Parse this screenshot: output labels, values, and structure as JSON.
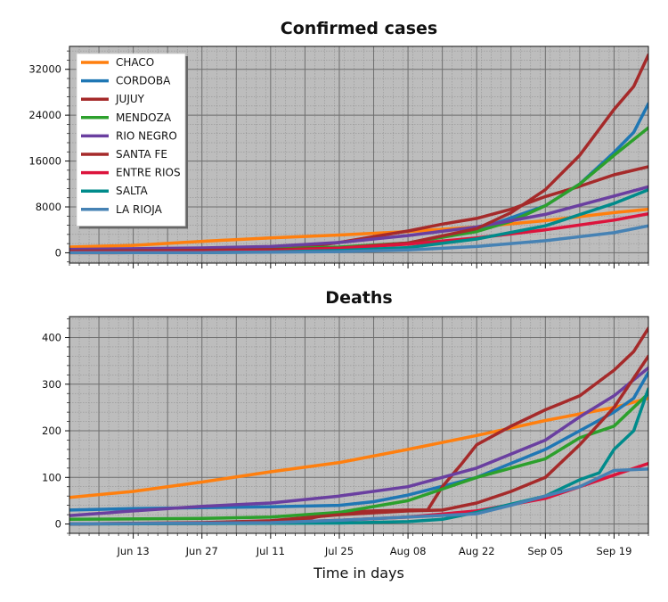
{
  "figure": {
    "xlabel": "Time in days",
    "x_tick_labels": [
      "Jun 13",
      "Jun 27",
      "Jul 11",
      "Jul 25",
      "Aug 08",
      "Aug 22",
      "Sep 05",
      "Sep 19"
    ],
    "background": "#bdbdbd"
  },
  "chart_data": [
    {
      "type": "line",
      "title": "Confirmed cases",
      "xlabel": "Time in days",
      "ylabel": "",
      "x_range": [
        "2020-05-31",
        "2020-09-26"
      ],
      "ylim": [
        -1800,
        36000
      ],
      "y_ticks": [
        0,
        8000,
        16000,
        24000,
        32000
      ],
      "grid": true,
      "legend": "top-left",
      "series": [
        {
          "name": "CHACO",
          "color": "#ff7f0e",
          "points": [
            [
              "2020-05-31",
              1000
            ],
            [
              "2020-06-13",
              1300
            ],
            [
              "2020-06-27",
              2000
            ],
            [
              "2020-07-11",
              2600
            ],
            [
              "2020-07-25",
              3100
            ],
            [
              "2020-08-08",
              3700
            ],
            [
              "2020-08-22",
              4500
            ],
            [
              "2020-09-05",
              5600
            ],
            [
              "2020-09-19",
              7000
            ],
            [
              "2020-09-26",
              7600
            ]
          ]
        },
        {
          "name": "CORDOBA",
          "color": "#1f77b4",
          "points": [
            [
              "2020-05-31",
              500
            ],
            [
              "2020-06-13",
              550
            ],
            [
              "2020-06-27",
              600
            ],
            [
              "2020-07-11",
              700
            ],
            [
              "2020-07-25",
              900
            ],
            [
              "2020-08-08",
              1700
            ],
            [
              "2020-08-22",
              4000
            ],
            [
              "2020-09-05",
              8200
            ],
            [
              "2020-09-12",
              12000
            ],
            [
              "2020-09-19",
              17500
            ],
            [
              "2020-09-23",
              21000
            ],
            [
              "2020-09-26",
              26000
            ]
          ]
        },
        {
          "name": "JUJUY",
          "color": "#a52a2a",
          "points": [
            [
              "2020-05-31",
              10
            ],
            [
              "2020-06-13",
              20
            ],
            [
              "2020-06-27",
              50
            ],
            [
              "2020-07-04",
              150
            ],
            [
              "2020-07-11",
              450
            ],
            [
              "2020-07-18",
              1000
            ],
            [
              "2020-07-25",
              1800
            ],
            [
              "2020-08-01",
              2800
            ],
            [
              "2020-08-08",
              3800
            ],
            [
              "2020-08-15",
              5000
            ],
            [
              "2020-08-22",
              6000
            ],
            [
              "2020-08-29",
              7600
            ],
            [
              "2020-09-05",
              9800
            ],
            [
              "2020-09-12",
              11600
            ],
            [
              "2020-09-19",
              13600
            ],
            [
              "2020-09-26",
              15000
            ]
          ]
        },
        {
          "name": "MENDOZA",
          "color": "#2ca02c",
          "points": [
            [
              "2020-05-31",
              200
            ],
            [
              "2020-06-13",
              300
            ],
            [
              "2020-06-27",
              450
            ],
            [
              "2020-07-11",
              650
            ],
            [
              "2020-07-25",
              1000
            ],
            [
              "2020-08-08",
              1700
            ],
            [
              "2020-08-22",
              3700
            ],
            [
              "2020-08-29",
              5500
            ],
            [
              "2020-09-05",
              8200
            ],
            [
              "2020-09-12",
              12000
            ],
            [
              "2020-09-19",
              17000
            ],
            [
              "2020-09-26",
              21800
            ]
          ]
        },
        {
          "name": "RIO NEGRO",
          "color": "#6a3fa0",
          "points": [
            [
              "2020-05-31",
              600
            ],
            [
              "2020-06-13",
              700
            ],
            [
              "2020-06-27",
              850
            ],
            [
              "2020-07-11",
              1100
            ],
            [
              "2020-07-25",
              1800
            ],
            [
              "2020-08-08",
              3000
            ],
            [
              "2020-08-22",
              4500
            ],
            [
              "2020-09-05",
              6700
            ],
            [
              "2020-09-19",
              9900
            ],
            [
              "2020-09-26",
              11500
            ]
          ]
        },
        {
          "name": "SANTA FE",
          "color": "#a52a2a",
          "points": [
            [
              "2020-05-31",
              300
            ],
            [
              "2020-06-13",
              350
            ],
            [
              "2020-06-27",
              420
            ],
            [
              "2020-07-11",
              550
            ],
            [
              "2020-07-25",
              800
            ],
            [
              "2020-08-08",
              1700
            ],
            [
              "2020-08-22",
              4200
            ],
            [
              "2020-08-29",
              7000
            ],
            [
              "2020-09-05",
              11000
            ],
            [
              "2020-09-12",
              17000
            ],
            [
              "2020-09-19",
              25000
            ],
            [
              "2020-09-23",
              29000
            ],
            [
              "2020-09-26",
              34500
            ]
          ]
        },
        {
          "name": "ENTRE RIOS",
          "color": "#dc143c",
          "points": [
            [
              "2020-05-31",
              100
            ],
            [
              "2020-06-13",
              120
            ],
            [
              "2020-06-27",
              150
            ],
            [
              "2020-07-11",
              300
            ],
            [
              "2020-07-25",
              800
            ],
            [
              "2020-08-08",
              1500
            ],
            [
              "2020-08-22",
              2600
            ],
            [
              "2020-09-05",
              4000
            ],
            [
              "2020-09-19",
              5700
            ],
            [
              "2020-09-26",
              6800
            ]
          ]
        },
        {
          "name": "SALTA",
          "color": "#008b8b",
          "points": [
            [
              "2020-05-31",
              20
            ],
            [
              "2020-06-27",
              40
            ],
            [
              "2020-07-11",
              150
            ],
            [
              "2020-07-25",
              400
            ],
            [
              "2020-08-08",
              900
            ],
            [
              "2020-08-22",
              2400
            ],
            [
              "2020-09-05",
              4700
            ],
            [
              "2020-09-19",
              8600
            ],
            [
              "2020-09-26",
              11000
            ]
          ]
        },
        {
          "name": "LA RIOJA",
          "color": "#4682b4",
          "points": [
            [
              "2020-05-31",
              20
            ],
            [
              "2020-06-27",
              40
            ],
            [
              "2020-07-11",
              100
            ],
            [
              "2020-07-25",
              200
            ],
            [
              "2020-08-08",
              500
            ],
            [
              "2020-08-22",
              1100
            ],
            [
              "2020-09-05",
              2100
            ],
            [
              "2020-09-19",
              3500
            ],
            [
              "2020-09-26",
              4700
            ]
          ]
        }
      ]
    },
    {
      "type": "line",
      "title": "Deaths",
      "xlabel": "Time in days",
      "ylabel": "",
      "x_range": [
        "2020-05-31",
        "2020-09-26"
      ],
      "ylim": [
        -20,
        445
      ],
      "y_ticks": [
        0,
        100,
        200,
        300,
        400
      ],
      "grid": true,
      "series": [
        {
          "name": "CHACO",
          "color": "#ff7f0e",
          "points": [
            [
              "2020-05-31",
              57
            ],
            [
              "2020-06-13",
              70
            ],
            [
              "2020-06-27",
              90
            ],
            [
              "2020-07-11",
              112
            ],
            [
              "2020-07-25",
              132
            ],
            [
              "2020-08-08",
              160
            ],
            [
              "2020-08-22",
              190
            ],
            [
              "2020-09-05",
              222
            ],
            [
              "2020-09-19",
              250
            ],
            [
              "2020-09-26",
              270
            ]
          ]
        },
        {
          "name": "CORDOBA",
          "color": "#1f77b4",
          "points": [
            [
              "2020-05-31",
              30
            ],
            [
              "2020-06-13",
              33
            ],
            [
              "2020-06-27",
              35
            ],
            [
              "2020-07-11",
              37
            ],
            [
              "2020-07-25",
              40
            ],
            [
              "2020-08-01",
              48
            ],
            [
              "2020-08-08",
              62
            ],
            [
              "2020-08-22",
              100
            ],
            [
              "2020-09-05",
              160
            ],
            [
              "2020-09-12",
              200
            ],
            [
              "2020-09-19",
              240
            ],
            [
              "2020-09-23",
              270
            ],
            [
              "2020-09-26",
              325
            ]
          ]
        },
        {
          "name": "JUJUY",
          "color": "#a52a2a",
          "points": [
            [
              "2020-05-31",
              0
            ],
            [
              "2020-07-11",
              2
            ],
            [
              "2020-07-18",
              10
            ],
            [
              "2020-07-25",
              25
            ],
            [
              "2020-08-01",
              28
            ],
            [
              "2020-08-08",
              30
            ],
            [
              "2020-08-12",
              30
            ],
            [
              "2020-08-15",
              80
            ],
            [
              "2020-08-19",
              130
            ],
            [
              "2020-08-22",
              170
            ],
            [
              "2020-08-29",
              210
            ],
            [
              "2020-09-01",
              225
            ],
            [
              "2020-09-05",
              245
            ],
            [
              "2020-09-12",
              275
            ],
            [
              "2020-09-19",
              330
            ],
            [
              "2020-09-23",
              370
            ],
            [
              "2020-09-26",
              420
            ]
          ]
        },
        {
          "name": "MENDOZA",
          "color": "#2ca02c",
          "points": [
            [
              "2020-05-31",
              10
            ],
            [
              "2020-06-27",
              12
            ],
            [
              "2020-07-11",
              15
            ],
            [
              "2020-07-25",
              25
            ],
            [
              "2020-08-08",
              50
            ],
            [
              "2020-08-22",
              100
            ],
            [
              "2020-09-05",
              140
            ],
            [
              "2020-09-12",
              185
            ],
            [
              "2020-09-19",
              210
            ],
            [
              "2020-09-26",
              280
            ]
          ]
        },
        {
          "name": "RIO NEGRO",
          "color": "#6a3fa0",
          "points": [
            [
              "2020-05-31",
              18
            ],
            [
              "2020-06-13",
              28
            ],
            [
              "2020-06-27",
              38
            ],
            [
              "2020-07-11",
              45
            ],
            [
              "2020-07-25",
              60
            ],
            [
              "2020-08-08",
              80
            ],
            [
              "2020-08-22",
              120
            ],
            [
              "2020-09-05",
              180
            ],
            [
              "2020-09-12",
              230
            ],
            [
              "2020-09-19",
              275
            ],
            [
              "2020-09-26",
              335
            ]
          ]
        },
        {
          "name": "SANTA FE",
          "color": "#a52a2a",
          "points": [
            [
              "2020-05-31",
              0
            ],
            [
              "2020-06-27",
              3
            ],
            [
              "2020-07-11",
              7
            ],
            [
              "2020-07-25",
              20
            ],
            [
              "2020-08-08",
              28
            ],
            [
              "2020-08-15",
              30
            ],
            [
              "2020-08-22",
              45
            ],
            [
              "2020-08-29",
              70
            ],
            [
              "2020-09-05",
              100
            ],
            [
              "2020-09-12",
              170
            ],
            [
              "2020-09-19",
              250
            ],
            [
              "2020-09-26",
              360
            ]
          ]
        },
        {
          "name": "ENTRE RIOS",
          "color": "#dc143c",
          "points": [
            [
              "2020-05-31",
              0
            ],
            [
              "2020-07-11",
              3
            ],
            [
              "2020-07-25",
              8
            ],
            [
              "2020-08-08",
              15
            ],
            [
              "2020-08-22",
              28
            ],
            [
              "2020-09-05",
              55
            ],
            [
              "2020-09-19",
              105
            ],
            [
              "2020-09-26",
              130
            ]
          ]
        },
        {
          "name": "SALTA",
          "color": "#008b8b",
          "points": [
            [
              "2020-05-31",
              0
            ],
            [
              "2020-07-25",
              2
            ],
            [
              "2020-08-08",
              5
            ],
            [
              "2020-08-15",
              10
            ],
            [
              "2020-08-22",
              25
            ],
            [
              "2020-09-05",
              60
            ],
            [
              "2020-09-12",
              95
            ],
            [
              "2020-09-16",
              110
            ],
            [
              "2020-09-19",
              160
            ],
            [
              "2020-09-23",
              200
            ],
            [
              "2020-09-26",
              290
            ]
          ]
        },
        {
          "name": "LA RIOJA",
          "color": "#4682b4",
          "points": [
            [
              "2020-05-31",
              0
            ],
            [
              "2020-07-11",
              3
            ],
            [
              "2020-07-25",
              8
            ],
            [
              "2020-08-08",
              15
            ],
            [
              "2020-08-22",
              22
            ],
            [
              "2020-08-29",
              40
            ],
            [
              "2020-09-05",
              60
            ],
            [
              "2020-09-12",
              80
            ],
            [
              "2020-09-19",
              115
            ],
            [
              "2020-09-26",
              118
            ]
          ]
        }
      ]
    }
  ]
}
